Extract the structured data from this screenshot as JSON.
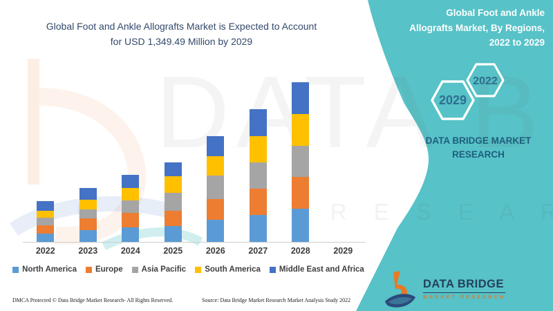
{
  "colors": {
    "teal_background": "#57C2C7",
    "title_navy": "#33496B",
    "brand_blue": "#1E5F7D",
    "hexagon_text": "#2F6E8F",
    "logo_orange": "#E87824",
    "logo_navy": "#2B4A7D",
    "axis_line": "#CCCCCC"
  },
  "left_panel": {
    "title": "Global Foot and Ankle Allografts Market is Expected to Account\nfor USD 1,349.49 Million by 2029",
    "footer_left": "DMCA Protected © Data Bridge Market Research- All Rights Reserved.",
    "footer_source": "Source: Data Bridge Market Research Market Analysis Study 2022"
  },
  "right_panel": {
    "title": "Global Foot and Ankle\nAllografts Market, By Regions,\n2022 to 2029",
    "badges": [
      {
        "label": "2029"
      },
      {
        "label": "2022"
      }
    ],
    "brand_text": "DATA BRIDGE MARKET\nRESEARCH",
    "logo": {
      "name": "DATA BRIDGE",
      "subtitle": "MARKET RESEARCH"
    }
  },
  "watermark": {
    "text_large": "DATA BRID",
    "text_row": "M A R K E T      R E S E A R C H"
  },
  "chart_data": {
    "type": "bar",
    "stacked": true,
    "title": "Global Foot and Ankle Allografts Market, By Regions, 2022 to 2029",
    "categories": [
      "2022",
      "2023",
      "2024",
      "2025",
      "2026",
      "2027",
      "2028",
      "2029"
    ],
    "series": [
      {
        "name": "North America",
        "color": "#5B9BD5",
        "values": [
          12,
          17,
          21,
          23,
          32,
          39,
          48,
          0
        ]
      },
      {
        "name": "Europe",
        "color": "#ED7D31",
        "values": [
          12,
          17,
          21,
          22,
          30,
          38,
          46,
          0
        ]
      },
      {
        "name": "Asia Pacific",
        "color": "#A5A5A5",
        "values": [
          11,
          13,
          18,
          26,
          34,
          38,
          45,
          0
        ]
      },
      {
        "name": "South America",
        "color": "#FFC000",
        "values": [
          10,
          14,
          18,
          24,
          28,
          38,
          46,
          0
        ]
      },
      {
        "name": "Middle East and Africa",
        "color": "#4472C4",
        "values": [
          14,
          17,
          19,
          20,
          29,
          39,
          46,
          0
        ]
      }
    ],
    "xlabel": "",
    "ylabel": "",
    "ylim": [
      0,
      240
    ],
    "grid": false,
    "y_axis_shown": false,
    "legend_position": "bottom"
  }
}
